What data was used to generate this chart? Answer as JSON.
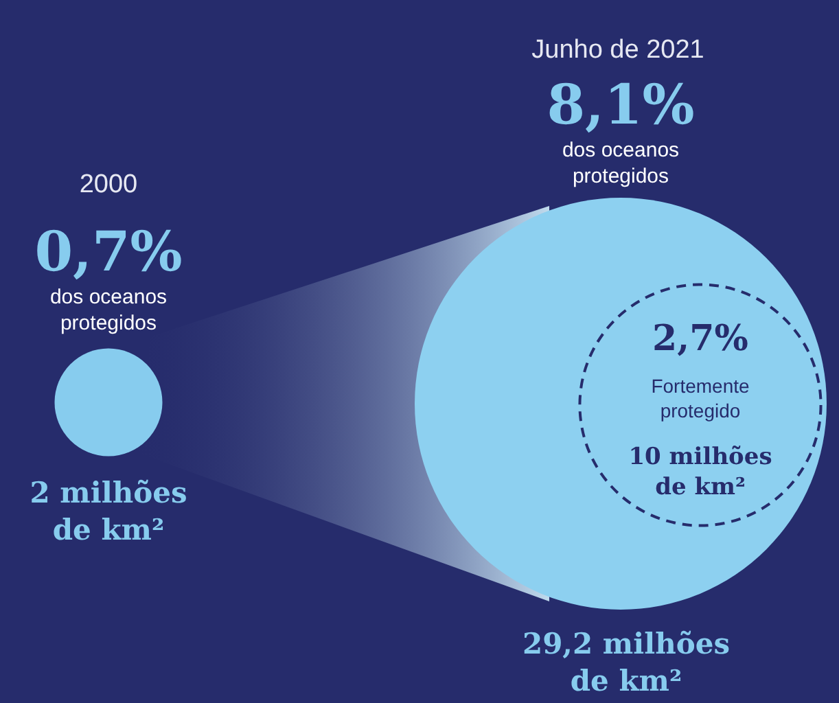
{
  "chart_data": {
    "type": "other",
    "categories": [
      "2000",
      "Junho de 2021",
      "Fortemente protegido"
    ],
    "values": [
      2,
      29.2,
      10
    ],
    "value_labels": [
      "2 milhões de km²",
      "29,2 milhões de km²",
      "10 milhões de km²"
    ],
    "colors": [
      "#87ccee",
      "#8dd0f0",
      "#8dd0f0"
    ],
    "annotations": [
      "0,7%",
      "dos oceanos protegidos",
      "8,1%",
      "dos oceanos protegidos",
      "2,7%"
    ]
  }
}
